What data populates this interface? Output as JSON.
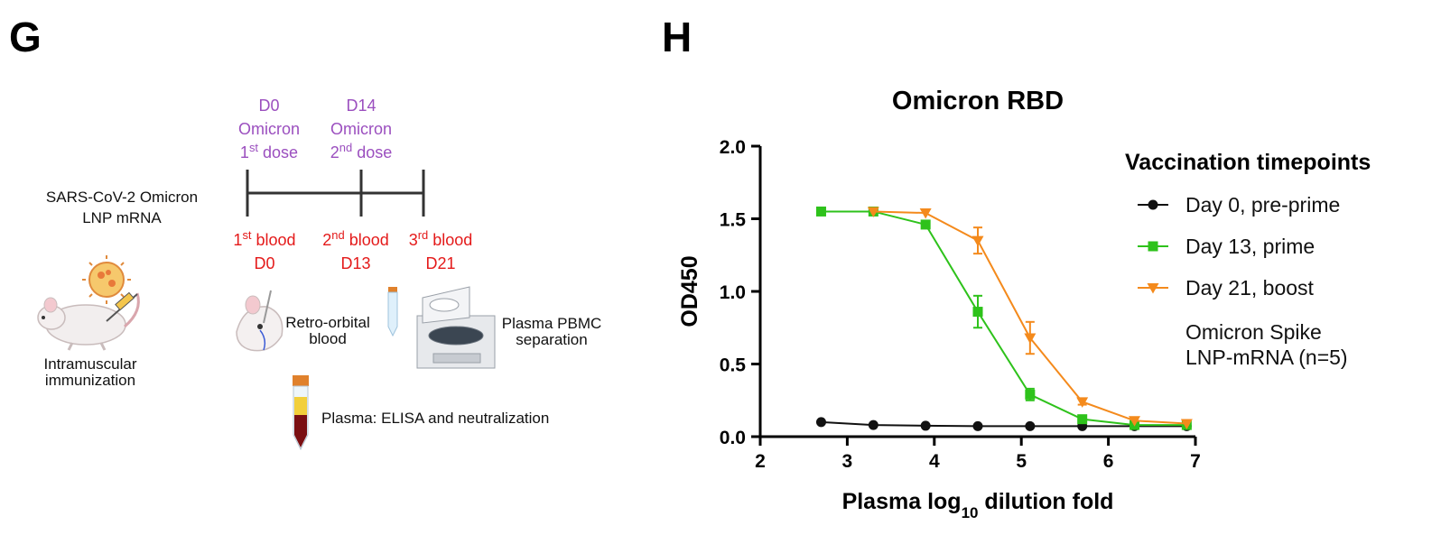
{
  "panel_g": {
    "letter": "G",
    "timeline": {
      "doses": [
        {
          "day": "D0",
          "vaccine": "Omicron",
          "ord": "1",
          "ord_sup": "st",
          "word": " dose"
        },
        {
          "day": "D14",
          "vaccine": "Omicron",
          "ord": "2",
          "ord_sup": "nd",
          "word": " dose"
        }
      ],
      "bloods": [
        {
          "ord": "1",
          "ord_sup": "st",
          "word": " blood",
          "day": "D0"
        },
        {
          "ord": "2",
          "ord_sup": "nd",
          "word": " blood",
          "day": "D13"
        },
        {
          "ord": "3",
          "ord_sup": "rd",
          "word": " blood",
          "day": "D21"
        }
      ]
    },
    "vaccine_label_line1": "SARS-CoV-2 Omicron",
    "vaccine_label_line2": "LNP mRNA",
    "immunization_line1": "Intramuscular",
    "immunization_line2": "immunization",
    "retro_line1": "Retro-orbital",
    "retro_line2": "blood",
    "plasma_pbmc_line1": "Plasma PBMC",
    "plasma_pbmc_line2": "separation",
    "plasma_assay": "Plasma: ELISA and neutralization",
    "colors": {
      "dose": "#9b4fbf",
      "blood": "#e41a1a"
    },
    "icons": [
      "mouse-icon",
      "virus-icon",
      "syringe-icon",
      "mouse-head-icon",
      "centrifuge-icon",
      "tube-icon",
      "blood-tube-icon"
    ]
  },
  "panel_h": {
    "letter": "H"
  },
  "chart_data": {
    "type": "line",
    "title": "Omicron RBD",
    "xlabel_pre": "Plasma log",
    "xlabel_sub": "10",
    "xlabel_post": " dilution fold",
    "ylabel": "OD450",
    "xlim": [
      2,
      7
    ],
    "ylim": [
      0,
      2.0
    ],
    "xticks": [
      "2",
      "3",
      "4",
      "5",
      "6",
      "7"
    ],
    "yticks": [
      "0.0",
      "0.5",
      "1.0",
      "1.5",
      "2.0"
    ],
    "x": [
      2.7,
      3.3,
      3.9,
      4.5,
      5.1,
      5.7,
      6.3,
      6.9
    ],
    "legend_title": "Vaccination timepoints",
    "legend_note_line1": "Omicron Spike",
    "legend_note_line2": "LNP-mRNA (n=5)",
    "legend_position": "right",
    "series": [
      {
        "name": "Day 0, pre-prime",
        "color": "#111111",
        "marker": "circle",
        "values": [
          0.1,
          0.08,
          0.075,
          0.072,
          0.072,
          0.072,
          0.072,
          0.072
        ],
        "errors": [
          0,
          0,
          0,
          0,
          0,
          0,
          0,
          0
        ]
      },
      {
        "name": "Day 13, prime",
        "color": "#2ec21b",
        "marker": "square",
        "values": [
          1.55,
          1.55,
          1.46,
          0.86,
          0.29,
          0.12,
          0.08,
          0.08
        ],
        "errors": [
          0,
          0,
          0.02,
          0.11,
          0.04,
          0.02,
          0,
          0
        ]
      },
      {
        "name": "Day 21, boost",
        "color": "#f48a1c",
        "marker": "triangle-down",
        "values": [
          null,
          1.55,
          1.54,
          1.35,
          0.68,
          0.24,
          0.11,
          0.09
        ],
        "errors": [
          0,
          0,
          0,
          0.09,
          0.11,
          0.02,
          0,
          0
        ]
      }
    ]
  }
}
